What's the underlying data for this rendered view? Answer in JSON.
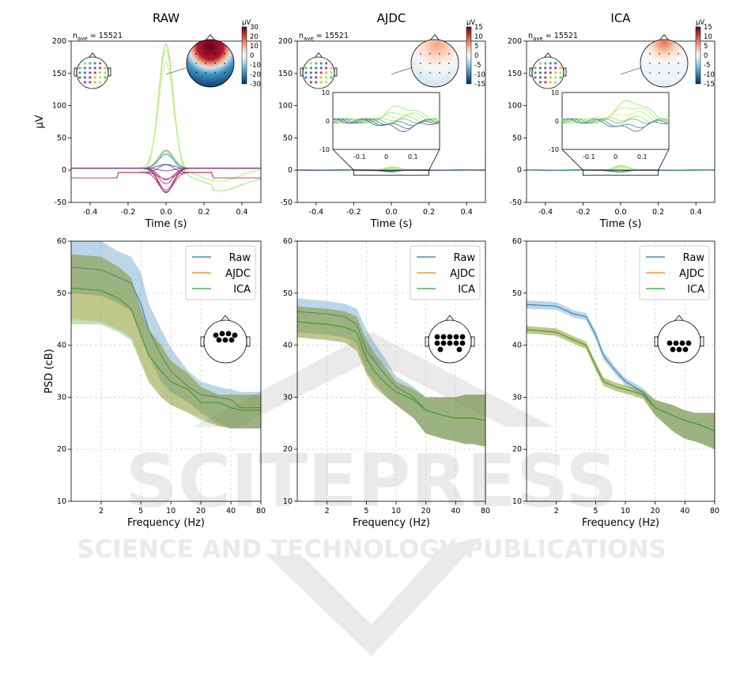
{
  "watermark": {
    "line1": "SCITEPRESS",
    "line2": "SCIENCE AND TECHNOLOGY PUBLICATIONS"
  },
  "colors": {
    "raw": "#1f77b4",
    "ajdc": "#ff7f0e",
    "ica": "#2ca02c",
    "watermark": "#d9d9d9"
  },
  "erp_shared": {
    "xlabel": "Time (s)",
    "ylabel": "µV",
    "nave_label": "n",
    "nave_sub": "ave",
    "nave_value": " = 15521",
    "cbar_unit": "µV"
  },
  "psd_shared": {
    "xlabel": "Frequency (Hz)",
    "ylabel": "PSD (cB)",
    "legend": [
      "Raw",
      "AJDC",
      "ICA"
    ]
  },
  "chart_data": [
    {
      "type": "line",
      "panel": "erp",
      "title": "RAW",
      "xlim": [
        -0.5,
        0.5
      ],
      "ylim": [
        -50,
        200
      ],
      "xticks": [
        "-0.4",
        "-0.2",
        "0.0",
        "0.2",
        "0.4"
      ],
      "yticks": [
        "-50",
        "0",
        "50",
        "100",
        "150",
        "200"
      ],
      "cbar_ticks": [
        "30",
        "20",
        "10",
        "0",
        "-10",
        "-20",
        "-30"
      ],
      "peak_time": 0.0,
      "series_peaks": [
        200,
        185,
        165,
        33,
        28,
        22,
        12,
        6,
        -4,
        -10,
        -18,
        -24,
        -30,
        -34,
        -38
      ],
      "inset": null
    },
    {
      "type": "line",
      "panel": "erp",
      "title": "AJDC",
      "xlim": [
        -0.5,
        0.5
      ],
      "ylim": [
        -50,
        200
      ],
      "xticks": [
        "-0.4",
        "-0.2",
        "0.0",
        "0.2",
        "0.4"
      ],
      "yticks": [
        "-50",
        "0",
        "50",
        "100",
        "150",
        "200"
      ],
      "cbar_ticks": [
        "15",
        "10",
        "5",
        "0",
        "-5",
        "-10",
        "-15"
      ],
      "peak_time": 0.0,
      "series_peaks": [
        5,
        3,
        2,
        1,
        0,
        -1,
        -2,
        -3
      ],
      "inset": {
        "xlim": [
          -0.2,
          0.2
        ],
        "ylim": [
          -10,
          10
        ],
        "xticks": [
          "-0.1",
          "0",
          "0.1"
        ],
        "yticks": [
          "10",
          "0",
          "-10"
        ]
      }
    },
    {
      "type": "line",
      "panel": "erp",
      "title": "ICA",
      "xlim": [
        -0.5,
        0.5
      ],
      "ylim": [
        -50,
        200
      ],
      "xticks": [
        "-0.4",
        "-0.2",
        "0.0",
        "0.2",
        "0.4"
      ],
      "yticks": [
        "-50",
        "0",
        "50",
        "100",
        "150",
        "200"
      ],
      "cbar_ticks": [
        "15",
        "10",
        "5",
        "0",
        "-5",
        "-10",
        "-15"
      ],
      "peak_time": 0.0,
      "series_peaks": [
        7,
        5,
        3,
        1,
        0,
        -2,
        -3
      ],
      "inset": {
        "xlim": [
          -0.2,
          0.2
        ],
        "ylim": [
          -10,
          10
        ],
        "xticks": [
          "-0.1",
          "0",
          "0.1"
        ],
        "yticks": [
          "10",
          "0",
          "-10"
        ]
      }
    },
    {
      "type": "area",
      "panel": "psd",
      "xscale": "log",
      "xlim": [
        1,
        80
      ],
      "ylim": [
        10,
        60
      ],
      "xticks": [
        "2",
        "5",
        "10",
        "20",
        "40",
        "80"
      ],
      "yticks": [
        "10",
        "20",
        "30",
        "40",
        "50",
        "60"
      ],
      "grid": true,
      "legend_position": "top-right",
      "x": [
        1,
        2,
        3,
        4,
        5,
        6,
        8,
        10,
        15,
        20,
        30,
        40,
        50,
        60,
        80
      ],
      "series": [
        {
          "name": "Raw",
          "mean": [
            55,
            54.5,
            53,
            52,
            48,
            43,
            38,
            35,
            32,
            30.5,
            30,
            29.5,
            28,
            28,
            28
          ],
          "lower": [
            50,
            49.5,
            48,
            46.5,
            42,
            38,
            33,
            31,
            29,
            27,
            25,
            24,
            24,
            24,
            24
          ],
          "upper": [
            60,
            60,
            58,
            57,
            54,
            48,
            43,
            39.5,
            35,
            33,
            32,
            31.5,
            31,
            31,
            31
          ]
        },
        {
          "name": "AJDC",
          "mean": [
            51,
            50.5,
            49,
            47,
            42,
            38,
            35,
            33,
            31.5,
            29,
            29,
            28,
            27.5,
            27.5,
            27.5
          ],
          "lower": [
            45,
            44.5,
            43,
            41.5,
            37,
            33,
            30,
            28.5,
            27,
            26,
            24.5,
            24,
            24,
            24,
            24
          ],
          "upper": [
            57.5,
            57,
            55,
            53,
            47,
            43,
            40,
            37,
            34.5,
            32,
            30.5,
            30.5,
            30.5,
            30.5,
            30.5
          ]
        },
        {
          "name": "ICA",
          "mean": [
            51,
            50.5,
            49,
            47,
            42,
            38,
            35,
            33,
            31.5,
            29,
            29,
            28,
            27.5,
            27.5,
            27.5
          ],
          "lower": [
            44,
            44,
            42.5,
            41,
            36.5,
            33,
            30,
            28.5,
            27,
            25.5,
            24.5,
            24,
            24,
            24,
            24
          ],
          "upper": [
            57.5,
            57,
            55,
            53,
            47,
            43,
            40,
            37,
            34.5,
            32,
            30.5,
            30.5,
            30.5,
            30.5,
            30.5
          ]
        }
      ]
    },
    {
      "type": "area",
      "panel": "psd",
      "xscale": "log",
      "xlim": [
        1,
        80
      ],
      "ylim": [
        10,
        60
      ],
      "xticks": [
        "2",
        "5",
        "10",
        "20",
        "40",
        "80"
      ],
      "yticks": [
        "10",
        "20",
        "30",
        "40",
        "50",
        "60"
      ],
      "grid": true,
      "legend_position": "top-right",
      "x": [
        1,
        2,
        3,
        4,
        5,
        6,
        8,
        10,
        15,
        20,
        30,
        40,
        50,
        60,
        80
      ],
      "series": [
        {
          "name": "Raw",
          "mean": [
            46.5,
            46,
            45.5,
            44,
            39,
            37,
            34,
            32,
            30,
            27.5,
            26.5,
            26,
            26,
            26,
            25.5
          ],
          "lower": [
            42.5,
            42,
            41.5,
            40.5,
            35,
            33,
            30,
            28.5,
            26,
            23,
            22,
            21.5,
            21,
            21,
            20.5
          ],
          "upper": [
            49,
            48.5,
            48,
            47,
            43,
            40.5,
            37,
            34,
            32,
            30,
            30,
            30,
            30.5,
            30.5,
            30.5
          ]
        },
        {
          "name": "AJDC",
          "mean": [
            44.5,
            44,
            43.5,
            42.5,
            37.5,
            35,
            32.5,
            31,
            29.5,
            27.5,
            26.5,
            26,
            26,
            26,
            25.5
          ],
          "lower": [
            41.5,
            41,
            40.5,
            39,
            34.5,
            32,
            30,
            28.5,
            26,
            23,
            22,
            21.5,
            21,
            21,
            20.5
          ],
          "upper": [
            47.5,
            47,
            46.5,
            45.5,
            41,
            38.5,
            35.5,
            33,
            31.5,
            30,
            30,
            30,
            30.5,
            30.5,
            30.5
          ]
        },
        {
          "name": "ICA",
          "mean": [
            44.5,
            44,
            43.5,
            42.5,
            37.5,
            35,
            32.5,
            31,
            29.5,
            27.5,
            26.5,
            26,
            26,
            26,
            25.5
          ],
          "lower": [
            41.5,
            41,
            40.5,
            39,
            34.5,
            32,
            30,
            28.5,
            26,
            23,
            22,
            21.5,
            21,
            21,
            20.5
          ],
          "upper": [
            47.5,
            47,
            46.5,
            45.5,
            41,
            38.5,
            35.5,
            33,
            31.5,
            30,
            30,
            30,
            30.5,
            30.5,
            30.5
          ]
        }
      ]
    },
    {
      "type": "area",
      "panel": "psd",
      "xscale": "log",
      "xlim": [
        1,
        80
      ],
      "ylim": [
        10,
        60
      ],
      "xticks": [
        "2",
        "5",
        "10",
        "20",
        "40",
        "80"
      ],
      "yticks": [
        "10",
        "20",
        "30",
        "40",
        "50",
        "60"
      ],
      "grid": true,
      "legend_position": "top-right",
      "x": [
        1,
        2,
        3,
        4,
        5,
        6,
        8,
        10,
        15,
        20,
        30,
        40,
        50,
        60,
        80
      ],
      "series": [
        {
          "name": "Raw",
          "mean": [
            47.8,
            47.5,
            46,
            45.5,
            42,
            38,
            35,
            33,
            31,
            28,
            26.5,
            25.5,
            25,
            24.5,
            23.5
          ],
          "lower": [
            47,
            46.8,
            45.3,
            44.8,
            41.2,
            37.2,
            34.3,
            32.3,
            30.2,
            26.5,
            23.5,
            22,
            21.5,
            21,
            20
          ],
          "upper": [
            48.6,
            48.3,
            46.7,
            46.2,
            42.8,
            38.8,
            35.7,
            33.7,
            31.8,
            29.5,
            28.5,
            27.5,
            27,
            27,
            27
          ]
        },
        {
          "name": "AJDC",
          "mean": [
            43,
            42.5,
            41,
            40,
            36,
            33,
            32,
            31.5,
            30.5,
            28,
            26.5,
            25.5,
            25,
            24.5,
            23.5
          ],
          "lower": [
            42.3,
            41.8,
            40.3,
            39.3,
            35.2,
            32.2,
            31.2,
            30.7,
            29.7,
            26.5,
            23.5,
            22,
            21.5,
            21,
            20
          ],
          "upper": [
            43.7,
            43.2,
            41.7,
            40.7,
            36.8,
            33.8,
            32.8,
            32.3,
            31.3,
            29.5,
            28.5,
            27.5,
            27,
            27,
            27
          ]
        },
        {
          "name": "ICA",
          "mean": [
            43,
            42.5,
            41,
            40,
            36,
            33,
            32,
            31.5,
            30.5,
            28,
            26.5,
            25.5,
            25,
            24.5,
            23.5
          ],
          "lower": [
            42.3,
            41.8,
            40.3,
            39.3,
            35.2,
            32.2,
            31.2,
            30.7,
            29.7,
            26.5,
            23.5,
            22,
            21.5,
            21,
            20
          ],
          "upper": [
            43.7,
            43.2,
            41.7,
            40.7,
            36.8,
            33.8,
            32.8,
            32.3,
            31.3,
            29.5,
            28.5,
            27.5,
            27,
            27,
            27
          ]
        }
      ]
    }
  ]
}
